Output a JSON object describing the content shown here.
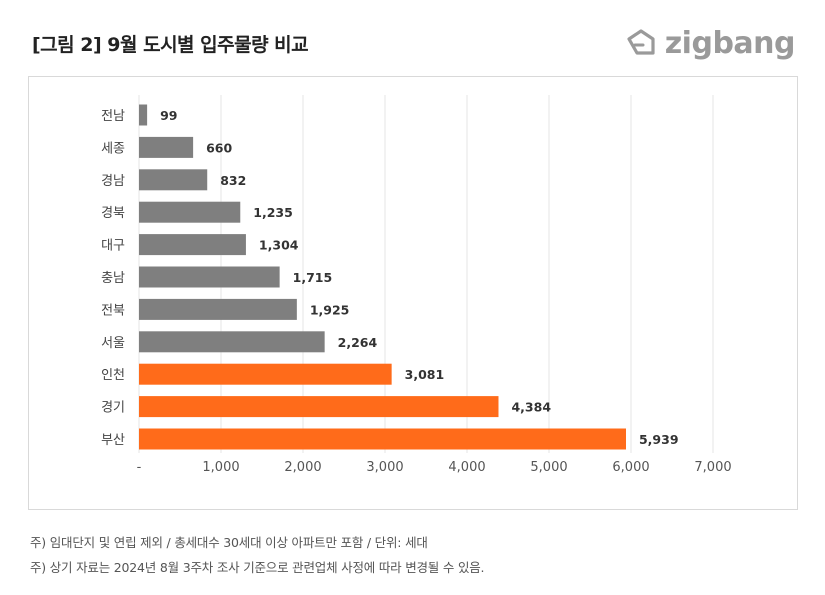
{
  "title": "[그림 2] 9월 도시별 입주물량 비교",
  "brand": {
    "name": "zigbang",
    "icon": "zigbang-logo-icon",
    "color": "#9a9a9a"
  },
  "colors": {
    "gray_bar": "#7f7f7f",
    "orange_bar": "#ff6b1a",
    "grid": "#e6e6e6"
  },
  "chart_data": {
    "type": "bar",
    "orientation": "horizontal",
    "categories": [
      "전남",
      "세종",
      "경남",
      "경북",
      "대구",
      "충남",
      "전북",
      "서울",
      "인천",
      "경기",
      "부산"
    ],
    "values": [
      99,
      660,
      832,
      1235,
      1304,
      1715,
      1925,
      2264,
      3081,
      4384,
      5939
    ],
    "value_labels": [
      "99",
      "660",
      "832",
      "1,235",
      "1,304",
      "1,715",
      "1,925",
      "2,264",
      "3,081",
      "4,384",
      "5,939"
    ],
    "highlighted": [
      "인천",
      "경기",
      "부산"
    ],
    "xlim": [
      0,
      7000
    ],
    "xticks": [
      0,
      1000,
      2000,
      3000,
      4000,
      5000,
      6000,
      7000
    ],
    "xtick_labels": [
      "-",
      "1,000",
      "2,000",
      "3,000",
      "4,000",
      "5,000",
      "6,000",
      "7,000"
    ],
    "grid": "vertical"
  },
  "notes": [
    "주) 임대단지 및 연립 제외 / 총세대수 30세대 이상 아파트만 포함 / 단위: 세대",
    "주) 상기 자료는 2024년 8월 3주차 조사 기준으로 관련업체 사정에 따라 변경될 수 있음."
  ]
}
